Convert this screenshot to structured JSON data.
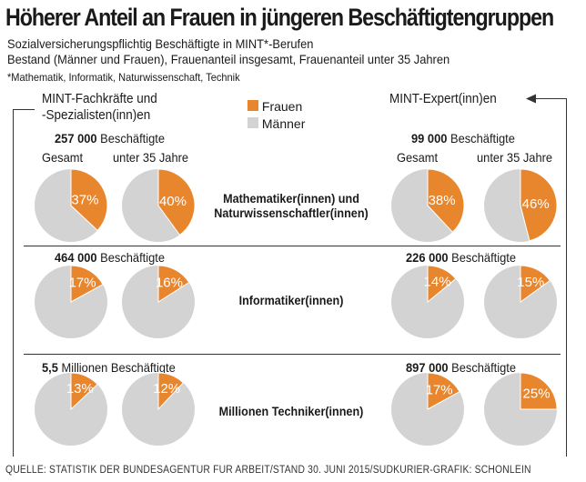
{
  "title": "Höherer Anteil an Frauen in jüngeren Beschäftigtengruppen",
  "subtitle_1": "Sozialversicherungspflichtig Beschäftigte in MINT*-Berufen",
  "subtitle_2": "Bestand (Männer und Frauen), Frauenanteil insgesamt, Frauenanteil unter 35 Jahren",
  "footnote": "*Mathematik, Informatik, Naturwissenschaft, Technik",
  "column_left": {
    "line1": "MINT-Fachkräfte und",
    "line2": "-Spezialisten(inn)en"
  },
  "column_right": "MINT-Expert(inn)en",
  "legend": [
    {
      "label": "Frauen",
      "color": "#e8862e"
    },
    {
      "label": "Männer",
      "color": "#d3d3d3"
    }
  ],
  "labels": {
    "gesamt": "Gesamt",
    "unter35": "unter 35 Jahre",
    "beschaeftigte": "Beschäftigte"
  },
  "rows": [
    {
      "category_line1": "Mathematiker(innen) und",
      "category_line2": "Naturwissenschaftler(innen)",
      "left_total_num": "257 000",
      "left_total_unit": "Beschäftigte",
      "right_total_num": "99 000",
      "right_total_unit": "Beschäftigte"
    },
    {
      "category_line1": "Informatiker(innen)",
      "left_total_num": "464 000",
      "left_total_unit": "Beschäftigte",
      "right_total_num": "226 000",
      "right_total_unit": "Beschäftigte"
    },
    {
      "category_line1": "Millionen Techniker(innen)",
      "left_total_num": "5,5",
      "left_total_unit": "Millionen Beschäftigte",
      "right_total_num": "897 000",
      "right_total_unit": "Beschäftigte"
    }
  ],
  "chart_data": {
    "type": "pie",
    "unit": "%",
    "series_label": "Frauenanteil",
    "pies": [
      {
        "row": "Mathematiker(innen) und Naturwissenschaftler(innen)",
        "group": "MINT-Fachkräfte und -Spezialisten(inn)en",
        "subset": "Gesamt",
        "frauen": 37,
        "label": "37%"
      },
      {
        "row": "Mathematiker(innen) und Naturwissenschaftler(innen)",
        "group": "MINT-Fachkräfte und -Spezialisten(inn)en",
        "subset": "unter 35 Jahre",
        "frauen": 40,
        "label": "40%"
      },
      {
        "row": "Mathematiker(innen) und Naturwissenschaftler(innen)",
        "group": "MINT-Expert(inn)en",
        "subset": "Gesamt",
        "frauen": 38,
        "label": "38%"
      },
      {
        "row": "Mathematiker(innen) und Naturwissenschaftler(innen)",
        "group": "MINT-Expert(inn)en",
        "subset": "unter 35 Jahre",
        "frauen": 46,
        "label": "46%"
      },
      {
        "row": "Informatiker(innen)",
        "group": "MINT-Fachkräfte und -Spezialisten(inn)en",
        "subset": "Gesamt",
        "frauen": 17,
        "label": "17%"
      },
      {
        "row": "Informatiker(innen)",
        "group": "MINT-Fachkräfte und -Spezialisten(inn)en",
        "subset": "unter 35 Jahre",
        "frauen": 16,
        "label": "16%"
      },
      {
        "row": "Informatiker(innen)",
        "group": "MINT-Expert(inn)en",
        "subset": "Gesamt",
        "frauen": 14,
        "label": "14%"
      },
      {
        "row": "Informatiker(innen)",
        "group": "MINT-Expert(inn)en",
        "subset": "unter 35 Jahre",
        "frauen": 15,
        "label": "15%"
      },
      {
        "row": "Techniker(innen)",
        "group": "MINT-Fachkräfte und -Spezialisten(inn)en",
        "subset": "Gesamt",
        "frauen": 13,
        "label": "13%"
      },
      {
        "row": "Techniker(innen)",
        "group": "MINT-Fachkräfte und -Spezialisten(inn)en",
        "subset": "unter 35 Jahre",
        "frauen": 12,
        "label": "12%"
      },
      {
        "row": "Techniker(innen)",
        "group": "MINT-Expert(inn)en",
        "subset": "Gesamt",
        "frauen": 17,
        "label": "17%"
      },
      {
        "row": "Techniker(innen)",
        "group": "MINT-Expert(inn)en",
        "subset": "unter 35 Jahre",
        "frauen": 25,
        "label": "25%"
      }
    ]
  },
  "source": "QUELLE: STATISTIK DER BUNDESAGENTUR FÜR ARBEIT/STAND 30. JUNI 2015/SÜDKURIER-GRAFIK: SCHÖNLEIN"
}
